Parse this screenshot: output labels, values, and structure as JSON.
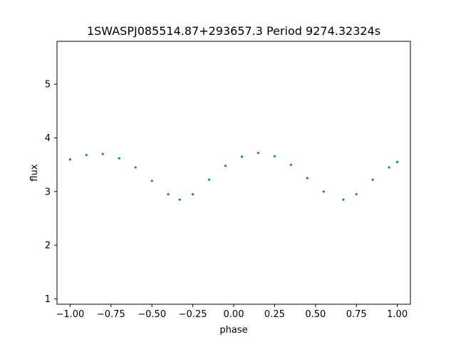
{
  "chart_data": {
    "type": "scatter",
    "title": "1SWASPJ085514.87+293657.3 Period 9274.32324s",
    "xlabel": "phase",
    "ylabel": "flux",
    "xlim": [
      -1.08,
      1.08
    ],
    "ylim": [
      0.9,
      5.8
    ],
    "xticks": [
      -1.0,
      -0.75,
      -0.5,
      -0.25,
      0.0,
      0.25,
      0.5,
      0.75,
      1.0
    ],
    "xtick_labels": [
      "−1.00",
      "−0.75",
      "−0.50",
      "−0.25",
      "0.00",
      "0.25",
      "0.50",
      "0.75",
      "1.00"
    ],
    "yticks": [
      1,
      2,
      3,
      4,
      5
    ],
    "ytick_labels": [
      "1",
      "2",
      "3",
      "4",
      "5"
    ],
    "grid": false,
    "marker_color": "#1f77b4",
    "series": [
      {
        "x": [
          -1.0,
          -0.9,
          -0.8,
          -0.7,
          -0.6,
          -0.5,
          -0.4,
          -0.33,
          -0.25,
          -0.15,
          -0.05,
          0.05,
          0.15,
          0.25,
          0.35,
          0.45,
          0.55,
          0.67,
          0.75,
          0.85,
          0.95,
          1.0
        ],
        "y": [
          3.6,
          3.68,
          3.7,
          3.62,
          3.45,
          3.2,
          2.95,
          2.85,
          2.95,
          3.22,
          3.48,
          3.65,
          3.72,
          3.66,
          3.5,
          3.25,
          3.0,
          2.85,
          2.95,
          3.22,
          3.45,
          3.55
        ]
      }
    ]
  }
}
